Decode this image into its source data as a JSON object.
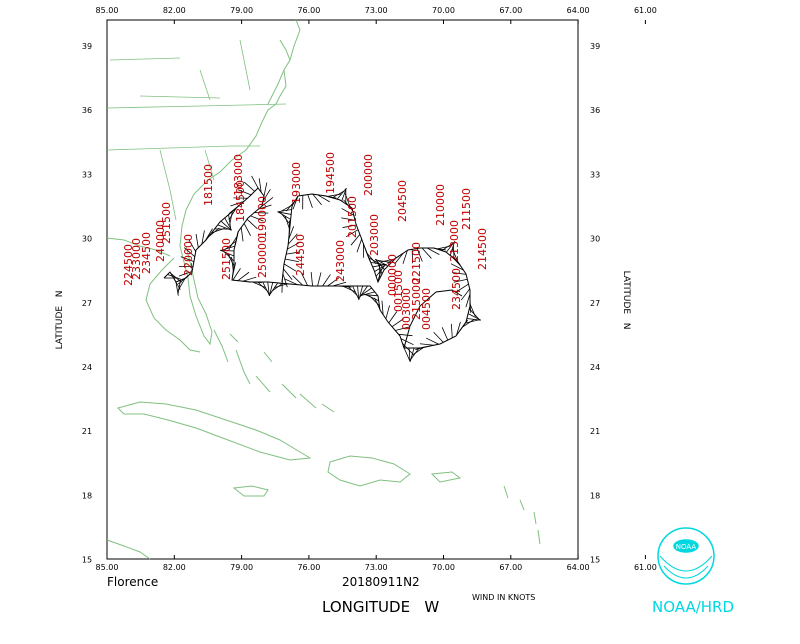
{
  "map": {
    "storm_name": "Florence",
    "flight_id": "20180911N2",
    "x_axis_label": "LONGITUDE   W",
    "y_axis_label_left": "LATITUDE   N",
    "y_axis_label_right": "LATITUDE   N",
    "wind_units": "WIND IN KNOTS",
    "agency": "NOAA/HRD",
    "logo_text": "NOAA",
    "lon_ticks": [
      "85.00",
      "82.00",
      "79.00",
      "76.00",
      "73.00",
      "70.00",
      "67.00",
      "64.00",
      "61.00"
    ],
    "lat_ticks": [
      "39",
      "36",
      "33",
      "30",
      "27",
      "24",
      "21",
      "18",
      "15"
    ],
    "lon_range": [
      -85,
      -63
    ],
    "lat_range": [
      15,
      40
    ],
    "colors": {
      "coast": "#80c080",
      "track": "#000000",
      "time_labels": "#c00000",
      "logo": "#00d8e0"
    }
  },
  "time_labels": [
    {
      "text": "184500"
    },
    {
      "text": "183000"
    },
    {
      "text": "181500"
    },
    {
      "text": "190000"
    },
    {
      "text": "193000"
    },
    {
      "text": "194500"
    },
    {
      "text": "200000"
    },
    {
      "text": "201500"
    },
    {
      "text": "203000"
    },
    {
      "text": "204500"
    },
    {
      "text": "210000"
    },
    {
      "text": "211500"
    },
    {
      "text": "213000"
    },
    {
      "text": "214500"
    },
    {
      "text": "243000"
    },
    {
      "text": "244500"
    },
    {
      "text": "250000"
    },
    {
      "text": "251500"
    },
    {
      "text": "251500"
    },
    {
      "text": "240000"
    },
    {
      "text": "234500"
    },
    {
      "text": "233000"
    },
    {
      "text": "224500"
    },
    {
      "text": "220000"
    },
    {
      "text": "221500"
    },
    {
      "text": "215000"
    },
    {
      "text": "000000"
    },
    {
      "text": "001500"
    },
    {
      "text": "003000"
    },
    {
      "text": "004500"
    },
    {
      "text": "234500"
    }
  ]
}
